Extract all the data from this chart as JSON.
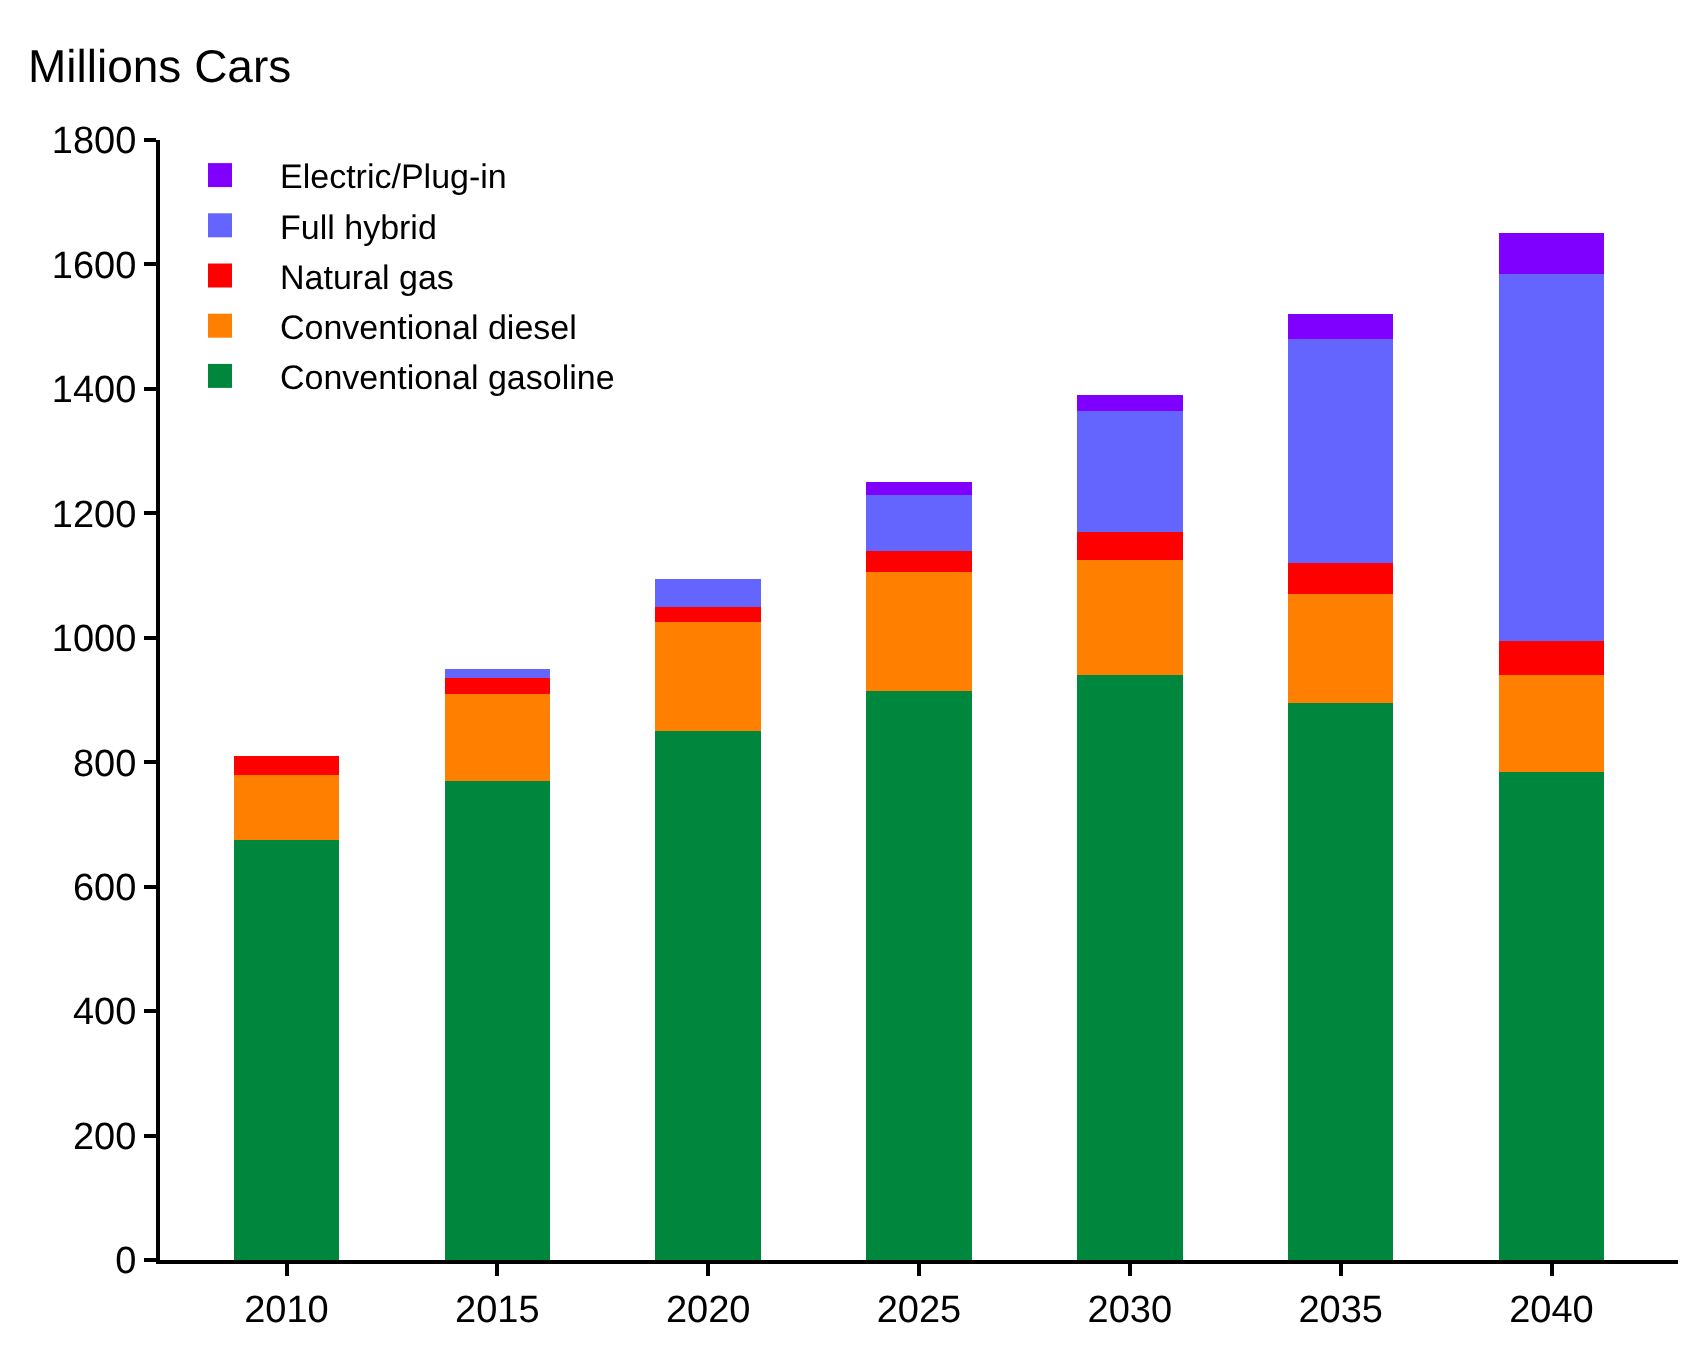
{
  "chart_data": {
    "type": "bar",
    "stacked": true,
    "ylabel": "Millions Cars",
    "categories": [
      "2010",
      "2015",
      "2020",
      "2025",
      "2030",
      "2035",
      "2040"
    ],
    "series": [
      {
        "name": "Conventional gasoline",
        "color": "#00873e",
        "values": [
          675,
          770,
          850,
          915,
          940,
          895,
          785
        ]
      },
      {
        "name": "Conventional diesel",
        "color": "#ff8000",
        "values": [
          105,
          140,
          175,
          190,
          185,
          175,
          155
        ]
      },
      {
        "name": "Natural gas",
        "color": "#ff0000",
        "values": [
          30,
          25,
          25,
          35,
          45,
          50,
          55
        ]
      },
      {
        "name": "Full hybrid",
        "color": "#6464ff",
        "values": [
          null,
          15,
          45,
          90,
          195,
          360,
          590
        ]
      },
      {
        "name": "Electric/Plug-in",
        "color": "#8000ff",
        "values": [
          null,
          null,
          null,
          20,
          25,
          40,
          65
        ]
      }
    ],
    "ylim": [
      0,
      1800
    ],
    "yticks": [
      0,
      200,
      400,
      600,
      800,
      1000,
      1200,
      1400,
      1600,
      1800
    ],
    "grid": false,
    "legend": "top left"
  }
}
